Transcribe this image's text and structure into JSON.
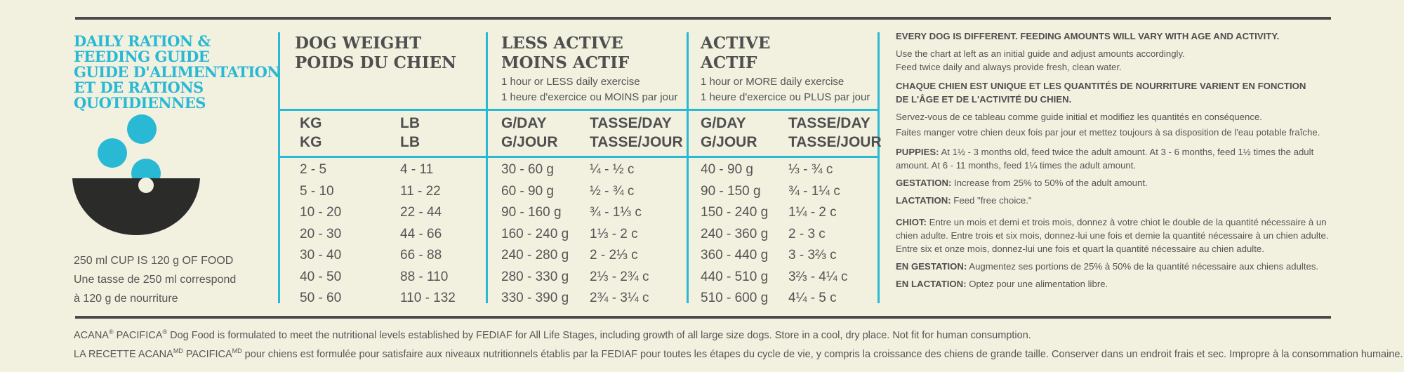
{
  "brand": {
    "title_lines": [
      "DAILY RATION &",
      "FEEDING GUIDE",
      "GUIDE D'ALIMENTATION",
      "ET DE RATIONS",
      "QUOTIDIENNES"
    ],
    "colors": {
      "accent": "#29b9d4",
      "bowl": "#2b2b2a",
      "rule": "#4a4a48",
      "background": "#f2f0df"
    },
    "icon": "food-bowl-icon",
    "cup_note_lines": [
      "250 ml CUP IS 120 g OF FOOD",
      "Une tasse de 250 ml correspond",
      "à 120 g de nourriture"
    ]
  },
  "table": {
    "weight": {
      "title_lines": [
        "DOG WEIGHT",
        "POIDS DU CHIEN"
      ],
      "kg_head": [
        "KG",
        "KG"
      ],
      "lb_head": [
        "LB",
        "LB"
      ],
      "kg": [
        "2 - 5",
        "5 - 10",
        "10 - 20",
        "20 - 30",
        "30 - 40",
        "40 - 50",
        "50 - 60"
      ],
      "lb": [
        "4 - 11",
        "11 - 22",
        "22 - 44",
        "44 - 66",
        "66 - 88",
        "88 - 110",
        "110 - 132"
      ]
    },
    "less_active": {
      "title_lines": [
        "LESS ACTIVE",
        "MOINS ACTIF"
      ],
      "sub_lines": [
        "1 hour or LESS daily exercise",
        "1 heure d'exercice ou MOINS par jour"
      ],
      "g_head": [
        "G/DAY",
        "G/JOUR"
      ],
      "c_head": [
        "TASSE/DAY",
        "TASSE/JOUR"
      ],
      "g": [
        "30 - 60 g",
        "60 - 90 g",
        "90 - 160 g",
        "160 - 240 g",
        "240 - 280 g",
        "280 - 330 g",
        "330 - 390 g"
      ],
      "c": [
        "¼ - ½ c",
        "½ - ¾ c",
        "¾ - 1⅓ c",
        "1⅓ - 2 c",
        "2 - 2⅓ c",
        "2⅓ - 2¾ c",
        "2¾ - 3¼ c"
      ]
    },
    "active": {
      "title_lines": [
        "ACTIVE",
        "ACTIF"
      ],
      "sub_lines": [
        "1 hour or MORE daily exercise",
        "1 heure d'exercice ou PLUS par jour"
      ],
      "g_head": [
        "G/DAY",
        "G/JOUR"
      ],
      "c_head": [
        "TASSE/DAY",
        "TASSE/JOUR"
      ],
      "g": [
        "40 - 90 g",
        "90 - 150 g",
        "150 - 240 g",
        "240 - 360 g",
        "360 - 440 g",
        "440 - 510 g",
        "510 - 600 g"
      ],
      "c": [
        "⅓ - ¾ c",
        "¾ - 1¼ c",
        "1¼ - 2 c",
        "2 - 3 c",
        "3 - 3⅔ c",
        "3⅔ - 4¼ c",
        "4¼ - 5 c"
      ]
    }
  },
  "notes": {
    "en_heading": "EVERY DOG IS DIFFERENT. FEEDING AMOUNTS WILL VARY WITH AGE AND ACTIVITY.",
    "en_lines": [
      "Use the chart at left as an initial guide and adjust amounts accordingly.",
      "Feed twice daily and always provide fresh, clean water."
    ],
    "fr_heading_lines": [
      "CHAQUE CHIEN EST UNIQUE ET LES QUANTITÉS DE NOURRITURE VARIENT EN FONCTION",
      "DE L'ÂGE ET DE L'ACTIVITÉ DU CHIEN."
    ],
    "fr_lines": [
      "Servez-vous de ce tableau comme guide initial et modifiez les quantités en conséquence.",
      "Faites manger votre chien deux fois par jour et mettez toujours à sa disposition de l'eau potable fraîche."
    ],
    "puppies": {
      "label": "PUPPIES:",
      "lines": [
        "At 1½ - 3 months old, feed twice the adult amount. At 3 - 6 months, feed 1½ times the adult",
        "amount. At  6 - 11 months, feed 1¼ times the adult amount."
      ]
    },
    "gestation": {
      "label": "GESTATION:",
      "text": "Increase from 25% to 50% of the adult amount."
    },
    "lactation": {
      "label": "LACTATION:",
      "text": "Feed \"free choice.\""
    },
    "chiot": {
      "label": "CHIOT:",
      "lines": [
        "Entre un mois et demi et trois mois, donnez à votre chiot le double de la quantité nécessaire à un",
        "chien adulte. Entre trois et six mois, donnez-lui une fois et demie la quantité nécessaire à un chien adulte.",
        "Entre six et onze mois, donnez-lui une fois et quart la quantité nécessaire au chien adulte."
      ]
    },
    "en_gestation": {
      "label": "EN GESTATION:",
      "text": "Augmentez ses portions de 25% à 50% de la quantité nécessaire aux chiens adultes."
    },
    "en_lactation": {
      "label": "EN LACTATION:",
      "text": "Optez pour une alimentation libre."
    }
  },
  "footer": {
    "line1_start": "ACANA",
    "line1_mid": " PACIFICA",
    "line1_end": " Dog Food is formulated to meet the nutritional levels established by FEDIAF for All Life Stages, including growth of all large size dogs.  Store in a cool, dry place. Not fit for human consumption.",
    "reg": "®",
    "line2_start": "LA RECETTE ACANA",
    "line2_mid": " PACIFICA",
    "line2_end": " pour chiens est formulée pour satisfaire aux niveaux nutritionnels établis par la FEDIAF pour toutes les étapes du cycle de vie, y compris la croissance des chiens de grande taille. Conserver dans un endroit frais et sec. Impropre à la consommation humaine.",
    "md": "MD"
  }
}
